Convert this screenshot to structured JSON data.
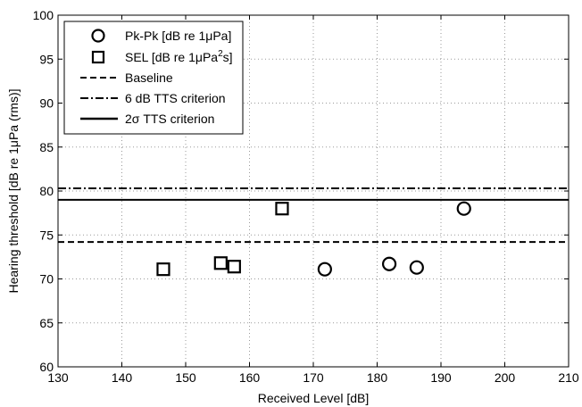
{
  "chart_data": {
    "type": "scatter",
    "xlabel": "Received Level [dB]",
    "ylabel_parts": [
      "Hearing threshold [dB re 1",
      "μ",
      "Pa (rms)]"
    ],
    "xlim": [
      130,
      210
    ],
    "ylim": [
      60,
      100
    ],
    "xticks": [
      130,
      140,
      150,
      160,
      170,
      180,
      190,
      200,
      210
    ],
    "yticks": [
      60,
      65,
      70,
      75,
      80,
      85,
      90,
      95,
      100
    ],
    "grid": true,
    "legend_position": "top-left",
    "series": [
      {
        "name_parts": [
          "Pk-Pk [dB re 1",
          "μ",
          "Pa]",
          ""
        ],
        "marker": "circle",
        "x": [
          171.8,
          181.9,
          186.2,
          193.6
        ],
        "y": [
          71.1,
          71.7,
          71.3,
          78.0
        ]
      },
      {
        "name_parts": [
          "SEL [dB re 1",
          "μ",
          "Pa",
          "2",
          "s]"
        ],
        "marker": "square",
        "x": [
          146.5,
          155.5,
          157.6,
          165.1
        ],
        "y": [
          71.1,
          71.8,
          71.4,
          78.0
        ]
      }
    ],
    "reference_lines": [
      {
        "name": "Baseline",
        "y": 74.2,
        "style": "dashed"
      },
      {
        "name": "6 dB TTS criterion",
        "y": 80.3,
        "style": "dashdot"
      },
      {
        "name_parts": [
          "2",
          "σ",
          " TTS criterion"
        ],
        "y": 79.0,
        "style": "solid"
      }
    ]
  }
}
